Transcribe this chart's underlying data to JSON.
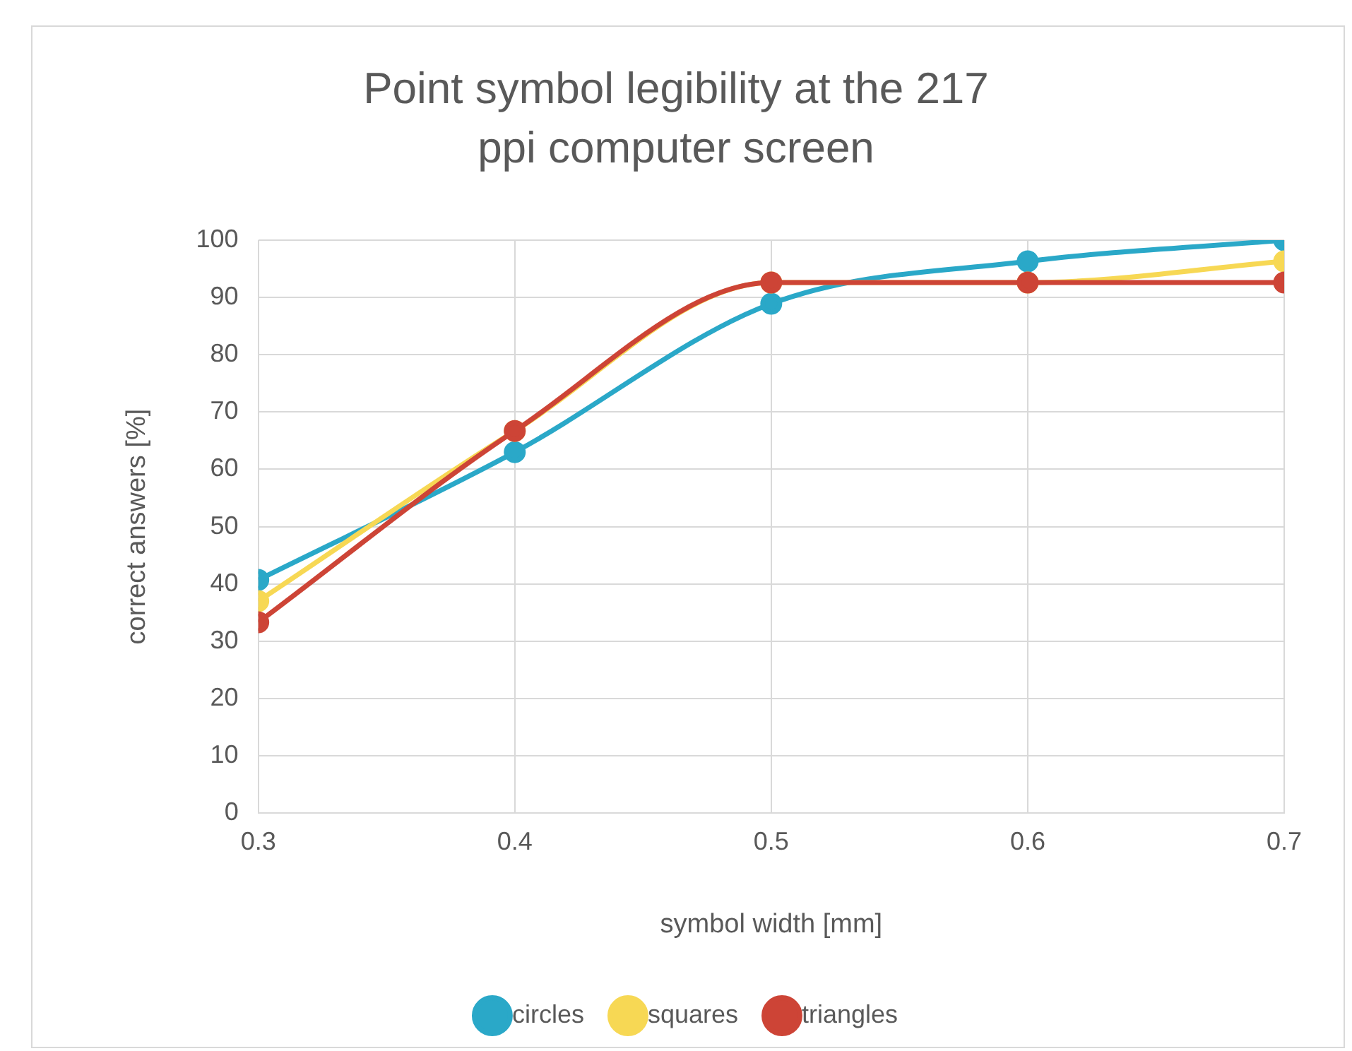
{
  "chart_data": {
    "type": "line",
    "title": "Point symbol legibility at the 217 ppi computer screen",
    "xlabel": "symbol width [mm]",
    "ylabel": "correct answers [%]",
    "x": [
      0.3,
      0.4,
      0.5,
      0.6,
      0.7
    ],
    "series": [
      {
        "name": "circles",
        "color": "#2aa8c8",
        "values": [
          40.7,
          63.0,
          88.9,
          96.3,
          100
        ]
      },
      {
        "name": "squares",
        "color": "#f7d854",
        "values": [
          37.0,
          66.7,
          92.6,
          92.6,
          96.3
        ]
      },
      {
        "name": "triangles",
        "color": "#cd4436",
        "values": [
          33.3,
          66.7,
          92.6,
          92.6,
          92.6
        ]
      }
    ],
    "xlim": [
      0.3,
      0.7
    ],
    "xticks": [
      0.3,
      0.4,
      0.5,
      0.6,
      0.7
    ],
    "ylim": [
      0,
      100
    ],
    "yticks": [
      0,
      10,
      20,
      30,
      40,
      50,
      60,
      70,
      80,
      90,
      100
    ],
    "grid": true,
    "legend": "bottom",
    "marker": "circle",
    "line_style": "solid"
  }
}
